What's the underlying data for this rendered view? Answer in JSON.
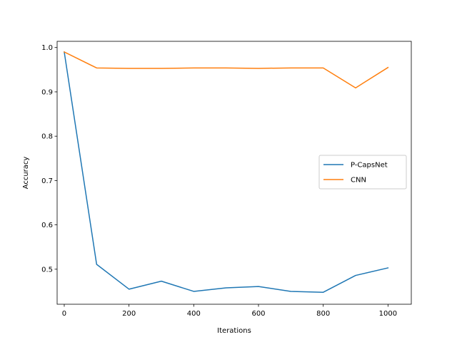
{
  "chart_data": {
    "type": "line",
    "xlabel": "Iterations",
    "ylabel": "Accuracy",
    "xlim": [
      -22,
      1072
    ],
    "ylim": [
      0.421,
      1.014
    ],
    "x_ticks": [
      0,
      200,
      400,
      600,
      800,
      1000
    ],
    "y_ticks": [
      0.5,
      0.6,
      0.7,
      0.8,
      0.9,
      1.0
    ],
    "x_tick_labels": [
      "0",
      "200",
      "400",
      "600",
      "800",
      "1000"
    ],
    "y_tick_labels": [
      "0.5",
      "0.6",
      "0.7",
      "0.8",
      "0.9",
      "1.0"
    ],
    "grid": false,
    "legend_position": "center-right",
    "x": [
      0,
      100,
      200,
      300,
      400,
      500,
      600,
      700,
      800,
      900,
      1000
    ],
    "series": [
      {
        "name": "P-CapsNet",
        "color": "#1f77b4",
        "values": [
          0.99,
          0.511,
          0.455,
          0.473,
          0.45,
          0.458,
          0.461,
          0.45,
          0.448,
          0.486,
          0.503
        ]
      },
      {
        "name": "CNN",
        "color": "#ff7f0e",
        "values": [
          0.99,
          0.954,
          0.953,
          0.953,
          0.954,
          0.954,
          0.953,
          0.954,
          0.954,
          0.909,
          0.955
        ]
      }
    ]
  }
}
